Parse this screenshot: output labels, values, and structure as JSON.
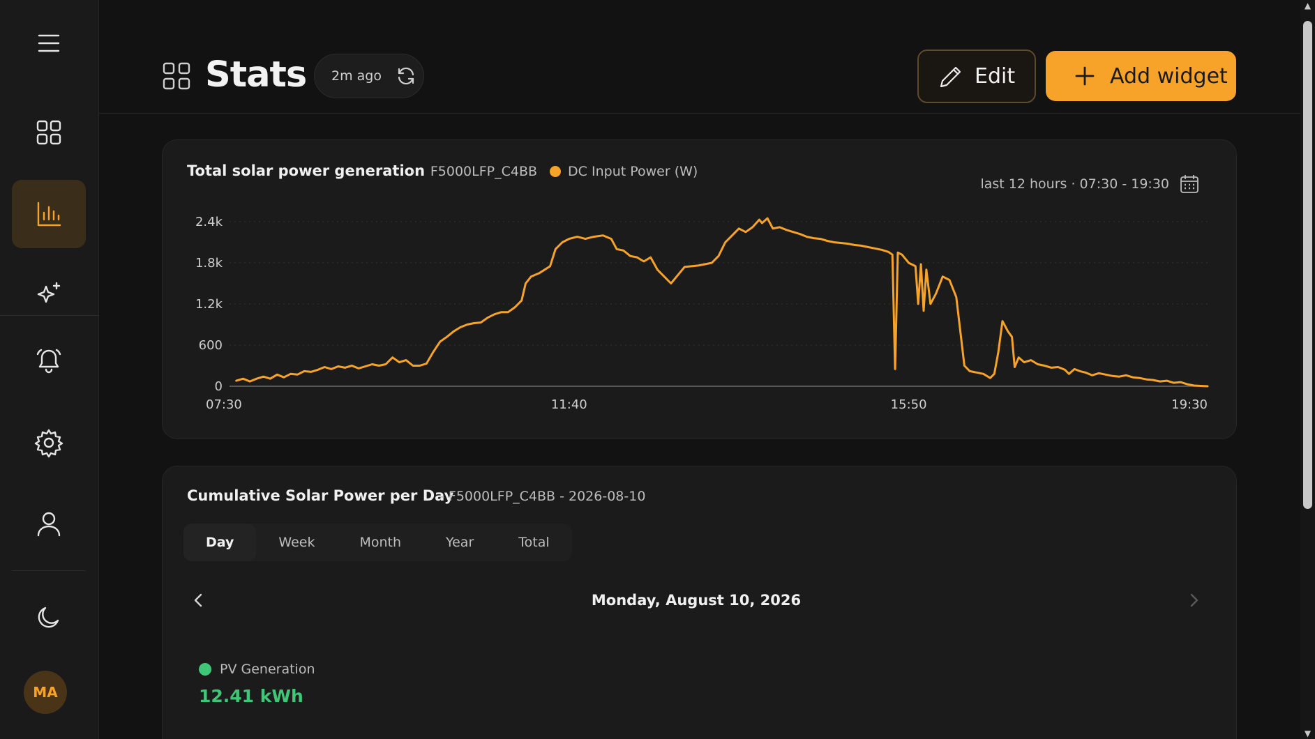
{
  "sidebar": {
    "items": [
      {
        "name": "menu-icon"
      },
      {
        "name": "dashboard-icon"
      },
      {
        "name": "stats-icon",
        "active": true
      },
      {
        "name": "sparkles-icon"
      },
      {
        "name": "bell-icon"
      },
      {
        "name": "settings-icon"
      },
      {
        "name": "user-icon"
      },
      {
        "name": "moon-icon"
      }
    ],
    "avatar_initials": "MA"
  },
  "header": {
    "title": "Stats",
    "refresh_text": "2m ago",
    "edit_label": "Edit",
    "add_widget_label": "Add widget"
  },
  "colors": {
    "accent": "#f7a32a",
    "green": "#3ec776",
    "background": "#121212",
    "card": "#1b1b1b"
  },
  "widget1": {
    "title": "Total solar power generation",
    "separator": "-",
    "device": "F5000LFP_C4BB",
    "series_label": "DC Input Power (W)",
    "range_label": "last 12 hours · 07:30 - 19:30"
  },
  "chart_data": {
    "type": "line",
    "title": "Total solar power generation",
    "xlabel": "",
    "ylabel": "",
    "ylim": [
      0,
      2600
    ],
    "y_ticks": [
      0,
      600,
      1200,
      1800,
      2400
    ],
    "y_tick_labels": [
      "0",
      "600",
      "1.2k",
      "1.8k",
      "2.4k"
    ],
    "x_tick_labels": [
      "07:30",
      "11:40",
      "15:50",
      "19:30"
    ],
    "x_tick_minutes": [
      450,
      700,
      950,
      1170
    ],
    "grid": "horizontal dotted",
    "series": [
      {
        "name": "DC Input Power (W)",
        "color": "#f7a32a",
        "points": [
          [
            455,
            80
          ],
          [
            460,
            110
          ],
          [
            465,
            70
          ],
          [
            470,
            110
          ],
          [
            475,
            140
          ],
          [
            480,
            110
          ],
          [
            485,
            170
          ],
          [
            490,
            130
          ],
          [
            495,
            180
          ],
          [
            500,
            170
          ],
          [
            505,
            220
          ],
          [
            510,
            210
          ],
          [
            515,
            240
          ],
          [
            520,
            280
          ],
          [
            525,
            250
          ],
          [
            530,
            290
          ],
          [
            535,
            270
          ],
          [
            540,
            300
          ],
          [
            545,
            260
          ],
          [
            550,
            290
          ],
          [
            555,
            320
          ],
          [
            560,
            300
          ],
          [
            565,
            320
          ],
          [
            570,
            420
          ],
          [
            575,
            350
          ],
          [
            580,
            380
          ],
          [
            585,
            300
          ],
          [
            590,
            300
          ],
          [
            595,
            330
          ],
          [
            600,
            500
          ],
          [
            605,
            650
          ],
          [
            610,
            720
          ],
          [
            615,
            800
          ],
          [
            620,
            860
          ],
          [
            625,
            900
          ],
          [
            630,
            920
          ],
          [
            635,
            930
          ],
          [
            640,
            1000
          ],
          [
            645,
            1050
          ],
          [
            650,
            1080
          ],
          [
            655,
            1080
          ],
          [
            660,
            1150
          ],
          [
            665,
            1250
          ],
          [
            668,
            1500
          ],
          [
            672,
            1600
          ],
          [
            678,
            1650
          ],
          [
            682,
            1700
          ],
          [
            686,
            1750
          ],
          [
            690,
            2000
          ],
          [
            695,
            2100
          ],
          [
            700,
            2150
          ],
          [
            706,
            2180
          ],
          [
            712,
            2150
          ],
          [
            718,
            2180
          ],
          [
            725,
            2200
          ],
          [
            731,
            2150
          ],
          [
            735,
            2000
          ],
          [
            740,
            1980
          ],
          [
            745,
            1900
          ],
          [
            750,
            1880
          ],
          [
            755,
            1820
          ],
          [
            760,
            1880
          ],
          [
            765,
            1700
          ],
          [
            770,
            1600
          ],
          [
            775,
            1500
          ],
          [
            780,
            1620
          ],
          [
            785,
            1740
          ],
          [
            790,
            1750
          ],
          [
            795,
            1760
          ],
          [
            800,
            1780
          ],
          [
            805,
            1800
          ],
          [
            810,
            1900
          ],
          [
            815,
            2100
          ],
          [
            820,
            2200
          ],
          [
            825,
            2300
          ],
          [
            830,
            2250
          ],
          [
            835,
            2320
          ],
          [
            840,
            2430
          ],
          [
            842,
            2380
          ],
          [
            846,
            2450
          ],
          [
            850,
            2300
          ],
          [
            855,
            2320
          ],
          [
            860,
            2280
          ],
          [
            865,
            2250
          ],
          [
            870,
            2220
          ],
          [
            875,
            2180
          ],
          [
            880,
            2160
          ],
          [
            885,
            2150
          ],
          [
            890,
            2120
          ],
          [
            895,
            2100
          ],
          [
            900,
            2090
          ],
          [
            905,
            2080
          ],
          [
            910,
            2060
          ],
          [
            915,
            2050
          ],
          [
            920,
            2030
          ],
          [
            925,
            2010
          ],
          [
            930,
            1990
          ],
          [
            935,
            1960
          ],
          [
            938,
            1920
          ],
          [
            940,
            250
          ],
          [
            942,
            1950
          ],
          [
            945,
            1920
          ],
          [
            950,
            1800
          ],
          [
            955,
            1750
          ],
          [
            957,
            1200
          ],
          [
            959,
            1780
          ],
          [
            961,
            1100
          ],
          [
            963,
            1700
          ],
          [
            966,
            1200
          ],
          [
            970,
            1350
          ],
          [
            975,
            1600
          ],
          [
            980,
            1550
          ],
          [
            985,
            1300
          ],
          [
            988,
            800
          ],
          [
            991,
            300
          ],
          [
            995,
            220
          ],
          [
            1000,
            200
          ],
          [
            1005,
            180
          ],
          [
            1010,
            120
          ],
          [
            1013,
            180
          ],
          [
            1016,
            500
          ],
          [
            1019,
            950
          ],
          [
            1023,
            800
          ],
          [
            1026,
            720
          ],
          [
            1028,
            280
          ],
          [
            1031,
            420
          ],
          [
            1035,
            350
          ],
          [
            1040,
            380
          ],
          [
            1045,
            320
          ],
          [
            1050,
            300
          ],
          [
            1055,
            270
          ],
          [
            1060,
            280
          ],
          [
            1065,
            240
          ],
          [
            1068,
            180
          ],
          [
            1072,
            250
          ],
          [
            1076,
            220
          ],
          [
            1080,
            200
          ],
          [
            1085,
            160
          ],
          [
            1090,
            190
          ],
          [
            1095,
            170
          ],
          [
            1100,
            150
          ],
          [
            1105,
            140
          ],
          [
            1110,
            160
          ],
          [
            1115,
            130
          ],
          [
            1120,
            120
          ],
          [
            1125,
            100
          ],
          [
            1130,
            90
          ],
          [
            1135,
            70
          ],
          [
            1140,
            80
          ],
          [
            1145,
            50
          ],
          [
            1150,
            60
          ],
          [
            1155,
            30
          ],
          [
            1160,
            10
          ],
          [
            1165,
            5
          ],
          [
            1170,
            0
          ]
        ]
      }
    ]
  },
  "widget2": {
    "title": "Cumulative Solar Power per Day",
    "subtitle": "- F5000LFP_C4BB - 2026-08-10",
    "tabs": [
      "Day",
      "Week",
      "Month",
      "Year",
      "Total"
    ],
    "active_tab": "Day",
    "date_label": "Monday, August 10, 2026",
    "legend_label": "PV Generation",
    "value": "12.41 kWh"
  }
}
